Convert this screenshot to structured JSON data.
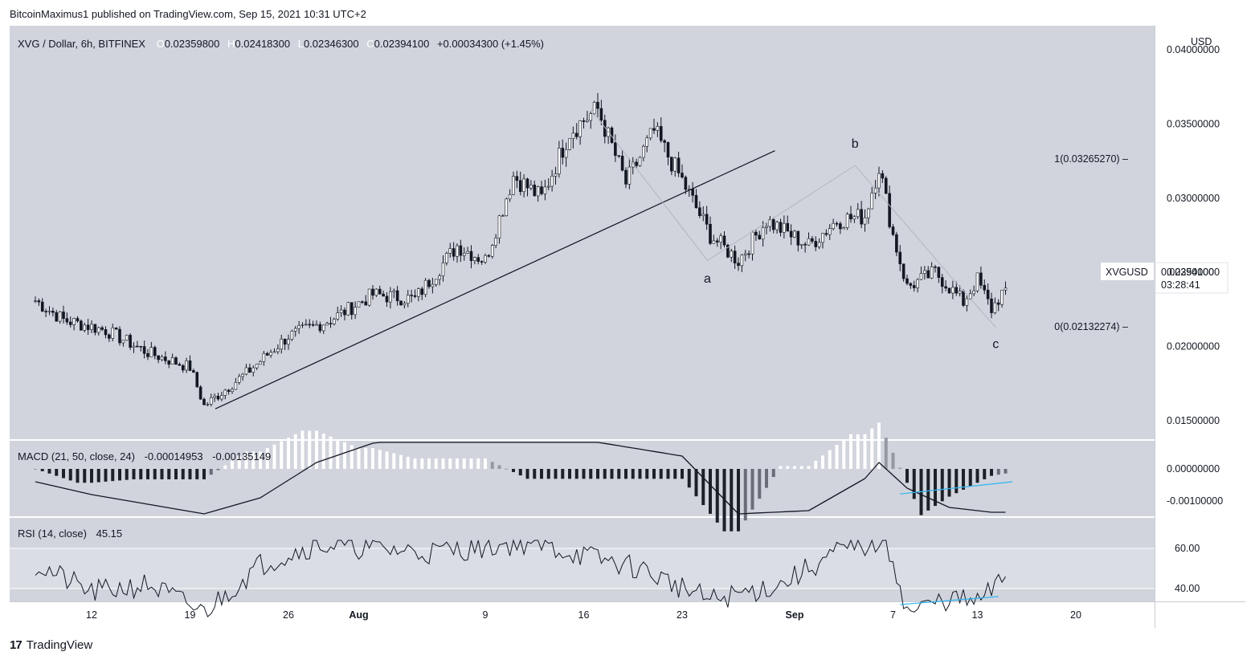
{
  "header": {
    "publisher_line": "BitcoinMaximus1 published on TradingView.com, Sep 15, 2021 10:31 UTC+2"
  },
  "legend": {
    "symbol": "XVG / Dollar, 6h, BITFINEX",
    "open_key": "O",
    "open": "0.02359800",
    "high_key": "H",
    "high": "0.02418300",
    "low_key": "L",
    "low": "0.02346300",
    "close_key": "C",
    "close": "0.02394100",
    "change": "+0.00034300 (+1.45%)"
  },
  "price_axis": {
    "unit": "USD",
    "ticks": [
      "0.04000000",
      "0.03500000",
      "0.03000000",
      "0.02500000",
      "0.02000000",
      "0.01500000"
    ],
    "last_price_label": "XVGUSD",
    "last_price": "0.02394100",
    "countdown": "03:28:41"
  },
  "fib_levels": [
    {
      "label": "1(0.03265270)",
      "value": 0.0326527
    },
    {
      "label": "0(0.02132274)",
      "value": 0.02132274
    }
  ],
  "wave_labels": [
    "a",
    "b",
    "c"
  ],
  "macd": {
    "title": "MACD (21, 50, close, 24)",
    "v1": "-0.00014953",
    "v2": "-0.00135149",
    "ticks": [
      "0.00000000",
      "-0.00100000"
    ]
  },
  "rsi": {
    "title": "RSI (14, close)",
    "value": "45.15",
    "ticks": [
      "60.00",
      "40.00"
    ]
  },
  "time_axis": {
    "labels": [
      "12",
      "19",
      "26",
      "Aug",
      "9",
      "16",
      "23",
      "Sep",
      "7",
      "13",
      "20"
    ]
  },
  "footer": {
    "brand": "TradingView",
    "logo_glyph": "17"
  },
  "colors": {
    "pane_bg": "#d1d4dc",
    "candle": "#131722",
    "blue_line": "#2fb5f2",
    "macd_hist_grey": "#9598a1",
    "macd_hist_white": "#ffffff"
  },
  "chart_data": {
    "type": "line",
    "title": "XVG / Dollar, 6h, BITFINEX",
    "ylabel": "USD",
    "ylim": [
      0.0125,
      0.04
    ],
    "x_axis_labels": [
      "12",
      "19",
      "26",
      "Aug",
      "9",
      "16",
      "23",
      "Sep",
      "7",
      "13",
      "20"
    ],
    "price_path": [
      {
        "x": "Jul 8",
        "y": 0.0231
      },
      {
        "x": "Jul 10",
        "y": 0.0218
      },
      {
        "x": "Jul 13",
        "y": 0.0211
      },
      {
        "x": "Jul 16",
        "y": 0.0196
      },
      {
        "x": "Jul 19",
        "y": 0.0186
      },
      {
        "x": "Jul 20",
        "y": 0.016
      },
      {
        "x": "Jul 23",
        "y": 0.0182
      },
      {
        "x": "Jul 26",
        "y": 0.0207
      },
      {
        "x": "Jul 29",
        "y": 0.0218
      },
      {
        "x": "Aug 1",
        "y": 0.0235
      },
      {
        "x": "Aug 4",
        "y": 0.0232
      },
      {
        "x": "Aug 7",
        "y": 0.0268
      },
      {
        "x": "Aug 9",
        "y": 0.0258
      },
      {
        "x": "Aug 11",
        "y": 0.0315
      },
      {
        "x": "Aug 13",
        "y": 0.03
      },
      {
        "x": "Aug 15",
        "y": 0.0345
      },
      {
        "x": "Aug 17",
        "y": 0.036
      },
      {
        "x": "Aug 19",
        "y": 0.031
      },
      {
        "x": "Aug 21",
        "y": 0.0345
      },
      {
        "x": "Aug 23",
        "y": 0.0312
      },
      {
        "x": "Aug 25",
        "y": 0.0275
      },
      {
        "x": "Aug 27",
        "y": 0.0258
      },
      {
        "x": "Aug 29",
        "y": 0.0285
      },
      {
        "x": "Sep 1",
        "y": 0.0268
      },
      {
        "x": "Sep 3",
        "y": 0.0285
      },
      {
        "x": "Sep 5",
        "y": 0.0288
      },
      {
        "x": "Sep 6",
        "y": 0.0322
      },
      {
        "x": "Sep 7",
        "y": 0.0275
      },
      {
        "x": "Sep 8",
        "y": 0.024
      },
      {
        "x": "Sep 10",
        "y": 0.025
      },
      {
        "x": "Sep 12",
        "y": 0.023
      },
      {
        "x": "Sep 13",
        "y": 0.0245
      },
      {
        "x": "Sep 14",
        "y": 0.0225
      },
      {
        "x": "Sep 15",
        "y": 0.02394
      }
    ],
    "macd_line": [
      {
        "x": "Jul 8",
        "y": -0.0004
      },
      {
        "x": "Jul 12",
        "y": -0.0008
      },
      {
        "x": "Jul 16",
        "y": -0.0011
      },
      {
        "x": "Jul 20",
        "y": -0.0014
      },
      {
        "x": "Jul 24",
        "y": -0.0009
      },
      {
        "x": "Jul 28",
        "y": 0.0002
      },
      {
        "x": "Aug 1",
        "y": 0.0008
      },
      {
        "x": "Aug 9",
        "y": 0.0014
      },
      {
        "x": "Aug 23",
        "y": 0.0004
      },
      {
        "x": "Aug 27",
        "y": -0.0014
      },
      {
        "x": "Sep 1",
        "y": -0.0013
      },
      {
        "x": "Sep 5",
        "y": -0.0003
      },
      {
        "x": "Sep 6",
        "y": 0.0002
      },
      {
        "x": "Sep 8",
        "y": -0.0006
      },
      {
        "x": "Sep 11",
        "y": -0.0012
      },
      {
        "x": "Sep 14",
        "y": -0.00135
      }
    ],
    "rsi_line": [
      {
        "x": "Jul 8",
        "y": 52
      },
      {
        "x": "Jul 12",
        "y": 38
      },
      {
        "x": "Jul 16",
        "y": 42
      },
      {
        "x": "Jul 20",
        "y": 28
      },
      {
        "x": "Jul 24",
        "y": 52
      },
      {
        "x": "Jul 28",
        "y": 62
      },
      {
        "x": "Aug 5",
        "y": 58
      },
      {
        "x": "Aug 12",
        "y": 63
      },
      {
        "x": "Aug 20",
        "y": 50
      },
      {
        "x": "Aug 25",
        "y": 34
      },
      {
        "x": "Aug 30",
        "y": 42
      },
      {
        "x": "Sep 3",
        "y": 58
      },
      {
        "x": "Sep 6",
        "y": 63
      },
      {
        "x": "Sep 7",
        "y": 55
      },
      {
        "x": "Sep 8",
        "y": 28
      },
      {
        "x": "Sep 11",
        "y": 35
      },
      {
        "x": "Sep 13",
        "y": 33
      },
      {
        "x": "Sep 15",
        "y": 45.15
      }
    ]
  }
}
